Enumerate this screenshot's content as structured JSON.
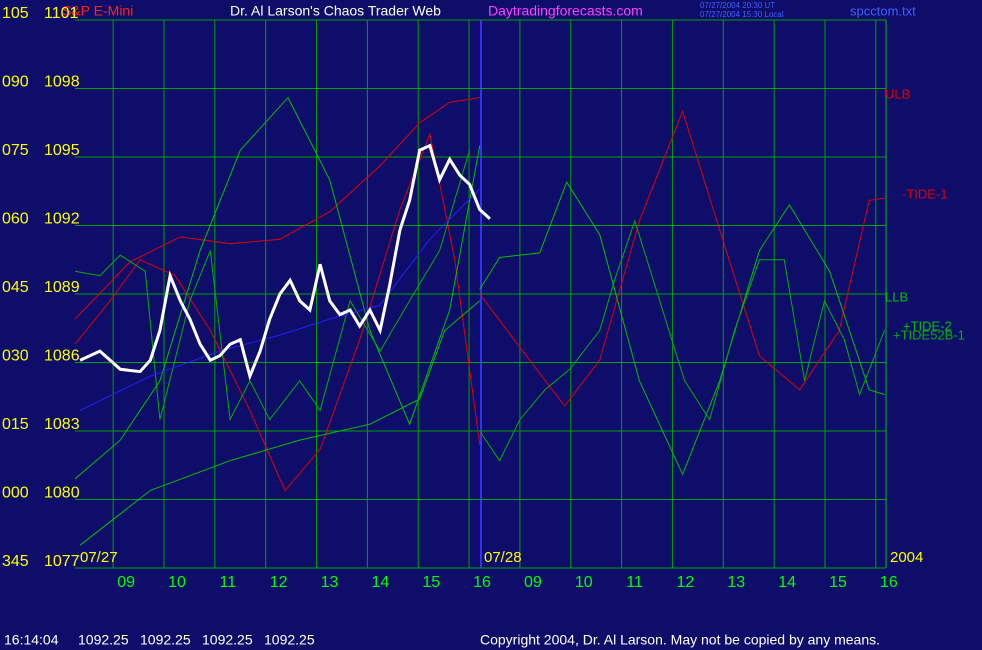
{
  "header": {
    "site": "Dr. Al Larson's Chaos Trader Web",
    "url": "Daytradingforecasts.com",
    "stamp_ut": "07/27/2004 20:30 UT",
    "stamp_local": "07/27/2004 15:30 Local",
    "file": "spcctom.txt"
  },
  "chart_data": {
    "type": "line",
    "title": "S&P E-Mini",
    "xlim": [
      0.25,
      16.2
    ],
    "xticks": [
      {
        "value": 1,
        "label": "09"
      },
      {
        "value": 2,
        "label": "10"
      },
      {
        "value": 3,
        "label": "11"
      },
      {
        "value": 4,
        "label": "12"
      },
      {
        "value": 5,
        "label": "13"
      },
      {
        "value": 6,
        "label": "14"
      },
      {
        "value": 7,
        "label": "15"
      },
      {
        "value": 8,
        "label": "16"
      },
      {
        "value": 9,
        "label": "09"
      },
      {
        "value": 10,
        "label": "10"
      },
      {
        "value": 11,
        "label": "11"
      },
      {
        "value": 12,
        "label": "12"
      },
      {
        "value": 13,
        "label": "13"
      },
      {
        "value": 14,
        "label": "14"
      },
      {
        "value": 15,
        "label": "15"
      },
      {
        "value": 16,
        "label": "16"
      }
    ],
    "ylim": [
      1077,
      1101
    ],
    "yticks": [
      1077,
      1080,
      1083,
      1086,
      1089,
      1092,
      1095,
      1098,
      1101
    ],
    "y2lim": [
      345,
      465
    ],
    "y2ticks": [
      345,
      {
        "value": 360,
        "label": "000"
      },
      {
        "value": 375,
        "label": "015"
      },
      {
        "value": 390,
        "label": "030"
      },
      {
        "value": 405,
        "label": "045"
      },
      {
        "value": 420,
        "label": "060"
      },
      {
        "value": 435,
        "label": "075"
      },
      {
        "value": 450,
        "label": "090"
      },
      {
        "value": 465,
        "label": "105"
      }
    ],
    "grid": true,
    "date_labels": [
      "07/27",
      "07/28",
      "2004"
    ],
    "series": [
      {
        "name": "ULB",
        "color": "#e00000",
        "x": [
          0.25,
          1.33,
          2.32,
          3.3,
          4.28,
          5.26,
          6.24,
          7.03,
          7.62,
          8.21
        ],
        "values": [
          1087.9,
          1090.4,
          1091.5,
          1091.2,
          1091.4,
          1092.6,
          1094.6,
          1096.5,
          1097.4,
          1097.6
        ]
      },
      {
        "name": "-TIDE-1",
        "color": "#e00000",
        "x": [
          0.25,
          0.94,
          1.53,
          2.22,
          2.91,
          3.69,
          4.38,
          5.07,
          5.85,
          6.64,
          7.23,
          7.72,
          8.21,
          null,
          8.21,
          9.19,
          9.88,
          10.57,
          11.35,
          12.2,
          12.93,
          13.71,
          14.5,
          15.28,
          15.87,
          16.17
        ],
        "values": [
          1086.8,
          1088.7,
          1090.5,
          1089.8,
          1087.4,
          1083.9,
          1080.4,
          1082.2,
          1087.0,
          1092.7,
          1096.0,
          1090.5,
          1082.4,
          null,
          1089.0,
          1086.1,
          1084.1,
          1086.1,
          1092.2,
          1097.0,
          1091.8,
          1086.3,
          1084.8,
          1087.4,
          1093.1,
          1093.2
        ]
      },
      {
        "name": "LLB",
        "color": "#00c000",
        "x": [
          0.35,
          1.73,
          3.3,
          4.67,
          6.05,
          7.03,
          7.52,
          8.21,
          null,
          8.21,
          8.6,
          9.39,
          9.92,
          10.57,
          11.35,
          12.2,
          12.93,
          13.71,
          14.3,
          15.09,
          15.87,
          16.17
        ],
        "values": [
          1078.0,
          1080.4,
          1081.7,
          1082.6,
          1083.3,
          1084.4,
          1087.4,
          1088.7,
          null,
          1089.2,
          1090.6,
          1090.8,
          1093.9,
          1091.6,
          1085.2,
          1081.1,
          1085.2,
          1090.9,
          1092.9,
          1090.0,
          1084.8,
          1084.6
        ]
      },
      {
        "name": "+TIDE-2",
        "color": "#00c000",
        "x": [
          0.25,
          1.14,
          1.92,
          2.71,
          3.5,
          4.44,
          5.26,
          6.05,
          6.83,
          7.62,
          8.21
        ],
        "values": [
          1080.9,
          1082.6,
          1085.2,
          1090.9,
          1095.3,
          1097.6,
          1094.0,
          1087.4,
          1083.3,
          1088.3,
          1095.5
        ]
      },
      {
        "name": "+TIDE52B-1",
        "color": "#00b000",
        "x": [
          0.25,
          0.74,
          1.14,
          1.63,
          1.92,
          2.51,
          2.91,
          3.3,
          3.69,
          4.08,
          4.67,
          5.07,
          5.66,
          6.25,
          6.83,
          7.42,
          8.01,
          null,
          8.21,
          8.6,
          9.0,
          9.49,
          9.98,
          10.57,
          10.86,
          11.26,
          11.75,
          12.24,
          12.73,
          13.22,
          13.71,
          14.2,
          14.6,
          14.99,
          15.38,
          15.68,
          16.17
        ],
        "values": [
          1090.0,
          1089.8,
          1090.7,
          1090.0,
          1083.5,
          1088.7,
          1090.9,
          1083.5,
          1085.2,
          1083.5,
          1085.2,
          1083.9,
          1088.7,
          1086.5,
          1088.7,
          1090.9,
          1095.3,
          null,
          1083.0,
          1081.7,
          1083.5,
          1084.8,
          1085.7,
          1087.4,
          1089.6,
          1092.2,
          1088.7,
          1085.2,
          1083.5,
          1087.4,
          1090.5,
          1090.5,
          1085.2,
          1088.7,
          1087.0,
          1084.6,
          1087.4
        ]
      },
      {
        "color": "#2020ff",
        "x": [
          0.35,
          1.73,
          3.1,
          4.28,
          5.26,
          6.24,
          7.23,
          8.21
        ],
        "values": [
          1083.9,
          1085.4,
          1086.5,
          1087.2,
          1087.9,
          1088.5,
          1091.4,
          1093.6
        ]
      },
      {
        "color": "#ffffff",
        "x": [
          0.35,
          0.74,
          1.14,
          1.53,
          1.73,
          1.92,
          2.12,
          2.32,
          2.51,
          2.71,
          2.91,
          3.1,
          3.3,
          3.5,
          3.69,
          3.89,
          4.08,
          4.28,
          4.48,
          4.67,
          4.87,
          5.07,
          5.26,
          5.46,
          5.66,
          5.85,
          6.05,
          6.25,
          6.44,
          6.64,
          6.83,
          7.03,
          7.23,
          7.42,
          7.62,
          7.82,
          8.01,
          8.21,
          8.41
        ],
        "values": [
          1086.1,
          1086.5,
          1085.7,
          1085.6,
          1086.1,
          1087.4,
          1089.8,
          1088.7,
          1087.9,
          1086.8,
          1086.1,
          1086.3,
          1086.8,
          1087.0,
          1085.4,
          1086.5,
          1087.9,
          1089.0,
          1089.6,
          1088.7,
          1088.3,
          1090.3,
          1088.7,
          1088.1,
          1088.3,
          1087.6,
          1088.3,
          1087.4,
          1089.4,
          1091.8,
          1093.1,
          1095.3,
          1095.5,
          1094.0,
          1094.9,
          1094.2,
          1093.8,
          1092.7,
          1092.3
        ]
      }
    ]
  },
  "status": {
    "time": "16:14:04",
    "values": [
      1092.25,
      1092.25,
      1092.25,
      1092.25
    ]
  },
  "copyright": "Copyright 2004, Dr. Al Larson. May not be copied by any means."
}
